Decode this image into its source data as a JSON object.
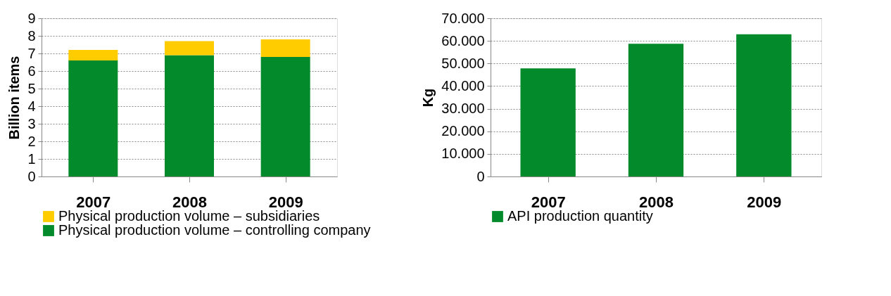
{
  "chart_data": [
    {
      "type": "bar",
      "ylabel": "Billion items",
      "categories": [
        "2007",
        "2008",
        "2009"
      ],
      "stacked": true,
      "ylim": [
        0,
        9
      ],
      "yticks": [
        0,
        1,
        2,
        3,
        4,
        5,
        6,
        7,
        8,
        9
      ],
      "grid": "y",
      "legend": "bottom",
      "series": [
        {
          "name": "Physical production volume – controlling company",
          "color": "#038a2a",
          "values": [
            6.6,
            6.9,
            6.8
          ]
        },
        {
          "name": "Physical production volume – subsidiaries",
          "color": "#ffcc00",
          "values": [
            0.6,
            0.8,
            1.0
          ]
        }
      ]
    },
    {
      "type": "bar",
      "ylabel": "Kg",
      "categories": [
        "2007",
        "2008",
        "2009"
      ],
      "ylim": [
        0,
        70000
      ],
      "yticks": [
        0,
        {
          "value": 10000,
          "label": "10.000"
        },
        {
          "value": 20000,
          "label": "20.000"
        },
        {
          "value": 30000,
          "label": "30.000"
        },
        {
          "value": 40000,
          "label": "40.000"
        },
        {
          "value": 50000,
          "label": "50.000"
        },
        {
          "value": 60000,
          "label": "60.000"
        },
        {
          "value": 70000,
          "label": "70.000"
        }
      ],
      "grid": "y",
      "legend": "bottom",
      "series": [
        {
          "name": "API production quantity",
          "color": "#038a2a",
          "values": [
            47800,
            58700,
            62900
          ]
        }
      ]
    }
  ]
}
